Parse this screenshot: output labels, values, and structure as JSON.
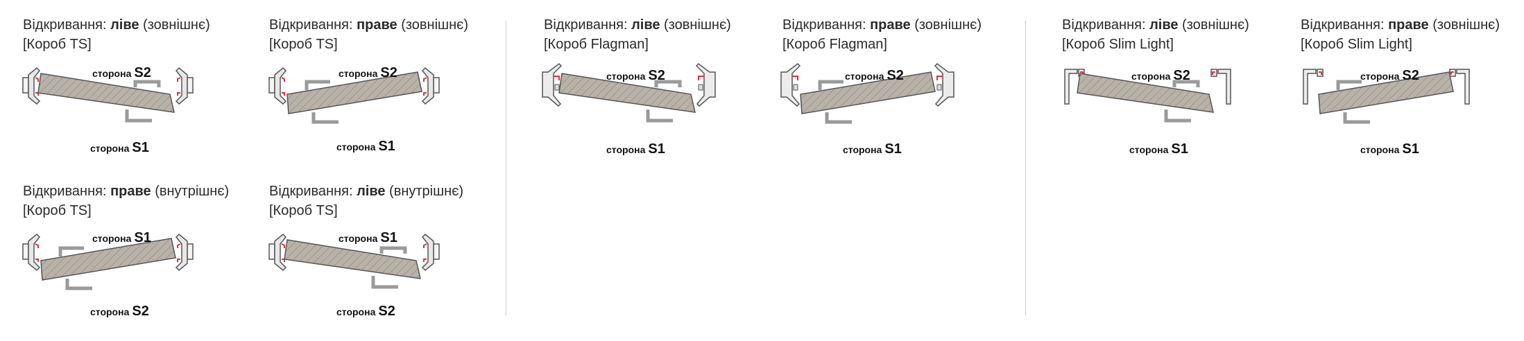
{
  "groups": [
    {
      "panels": [
        {
          "title_prefix": "Відкривання: ",
          "hand": "ліве",
          "mode": "(зовнішнє)",
          "box": "[Короб TS]",
          "top_word": "сторона",
          "top_code": "S2",
          "bottom_word": "сторона",
          "bottom_code": "S1",
          "frame": "ts",
          "tilt": "down"
        },
        {
          "title_prefix": "Відкривання: ",
          "hand": "праве",
          "mode": "(зовнішнє)",
          "box": "[Короб TS]",
          "top_word": "сторона",
          "top_code": "S2",
          "bottom_word": "сторона",
          "bottom_code": "S1",
          "frame": "ts",
          "tilt": "up"
        },
        {
          "title_prefix": "Відкривання: ",
          "hand": "праве",
          "mode": "(внутрішнє)",
          "box": "[Короб TS]",
          "top_word": "сторона",
          "top_code": "S1",
          "bottom_word": "сторона",
          "bottom_code": "S2",
          "frame": "ts",
          "tilt": "up"
        },
        {
          "title_prefix": "Відкривання: ",
          "hand": "ліве",
          "mode": "(внутрішнє)",
          "box": "[Короб TS]",
          "top_word": "сторона",
          "top_code": "S1",
          "bottom_word": "сторона",
          "bottom_code": "S2",
          "frame": "ts",
          "tilt": "down"
        }
      ]
    },
    {
      "panels": [
        {
          "title_prefix": "Відкривання: ",
          "hand": "ліве",
          "mode": "(зовнішнє)",
          "box": "[Короб Flagman]",
          "top_word": "сторона",
          "top_code": "S2",
          "bottom_word": "сторона",
          "bottom_code": "S1",
          "frame": "flagman",
          "tilt": "down"
        },
        {
          "title_prefix": "Відкривання: ",
          "hand": "праве",
          "mode": "(зовнішнє)",
          "box": "[Короб Flagman]",
          "top_word": "сторона",
          "top_code": "S2",
          "bottom_word": "сторона",
          "bottom_code": "S1",
          "frame": "flagman",
          "tilt": "up"
        }
      ]
    },
    {
      "panels": [
        {
          "title_prefix": "Відкривання: ",
          "hand": "ліве",
          "mode": "(зовнішнє)",
          "box": "[Короб Slim Light]",
          "top_word": "сторона",
          "top_code": "S2",
          "bottom_word": "сторона",
          "bottom_code": "S1",
          "frame": "slim",
          "tilt": "down"
        },
        {
          "title_prefix": "Відкривання: ",
          "hand": "праве",
          "mode": "(зовнішнє)",
          "box": "[Короб Slim Light]",
          "top_word": "сторона",
          "top_code": "S2",
          "bottom_word": "сторона",
          "bottom_code": "S1",
          "frame": "slim",
          "tilt": "up"
        }
      ]
    }
  ],
  "colors": {
    "door_fill": "#b8b2a9",
    "door_hatch": "#8c857c",
    "frame_stroke": "#555555",
    "seal": "#e0303a",
    "divider": "#c8c8c8"
  }
}
